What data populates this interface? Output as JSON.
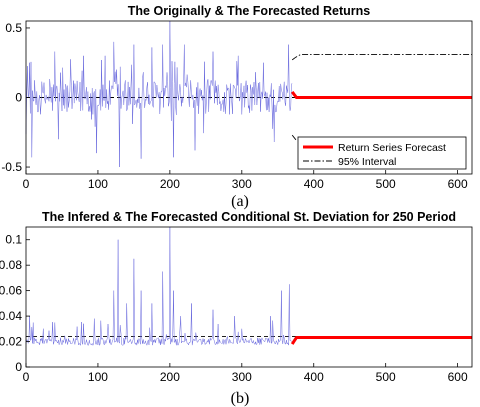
{
  "chart_data": [
    {
      "type": "line",
      "title": "The Originally & The Forecasted Returns",
      "caption": "(a)",
      "xlim": [
        0,
        620
      ],
      "ylim": [
        -0.55,
        0.55
      ],
      "x_ticks": [
        0,
        100,
        200,
        300,
        400,
        500,
        600
      ],
      "y_ticks": [
        -0.5,
        0,
        0.5
      ],
      "x_tick_labels": [
        "0",
        "100",
        "200",
        "300",
        "400",
        "500",
        "600"
      ],
      "y_tick_labels": [
        "-0.5",
        "0",
        "0.5"
      ],
      "reference_level": 0,
      "observed_length": 370,
      "observed_spikes": [
        {
          "x": 5,
          "y": 0.25
        },
        {
          "x": 8,
          "y": -0.43
        },
        {
          "x": 40,
          "y": 0.33
        },
        {
          "x": 45,
          "y": -0.3
        },
        {
          "x": 80,
          "y": 0.3
        },
        {
          "x": 98,
          "y": -0.4
        },
        {
          "x": 110,
          "y": 0.3
        },
        {
          "x": 122,
          "y": 0.4
        },
        {
          "x": 130,
          "y": -0.5
        },
        {
          "x": 150,
          "y": 0.38
        },
        {
          "x": 160,
          "y": -0.44
        },
        {
          "x": 175,
          "y": 0.36
        },
        {
          "x": 190,
          "y": 0.38
        },
        {
          "x": 200,
          "y": 0.55
        },
        {
          "x": 205,
          "y": -0.43
        },
        {
          "x": 220,
          "y": 0.38
        },
        {
          "x": 235,
          "y": -0.38
        },
        {
          "x": 260,
          "y": 0.33
        },
        {
          "x": 295,
          "y": 0.3
        },
        {
          "x": 330,
          "y": 0.25
        },
        {
          "x": 345,
          "y": -0.32
        },
        {
          "x": 365,
          "y": 0.38
        }
      ],
      "forecast": {
        "start": 370,
        "end": 620,
        "initial": 0.04,
        "level": 0
      },
      "interval": {
        "start": 370,
        "end": 620,
        "initial": 0.27,
        "level": 0.31
      },
      "colors": {
        "observed": "#6666dd",
        "forecast": "#ff0000",
        "interval": "#000000",
        "reference": "#000000"
      },
      "legend": {
        "position": "bottom-right",
        "entries": [
          {
            "label": "Return Series Forecast",
            "style": "solid-red"
          },
          {
            "label": "95% Interval",
            "style": "dashdot-black"
          }
        ]
      }
    },
    {
      "type": "line",
      "title": "The Infered & The Forecasted Conditional St. Deviation for 250 Period",
      "caption": "(b)",
      "xlim": [
        0,
        620
      ],
      "ylim": [
        0,
        0.11
      ],
      "x_ticks": [
        0,
        100,
        200,
        300,
        400,
        500,
        600
      ],
      "y_ticks": [
        0,
        0.02,
        0.04,
        0.06,
        0.08,
        0.1
      ],
      "x_tick_labels": [
        "0",
        "100",
        "200",
        "300",
        "400",
        "500",
        "600"
      ],
      "y_tick_labels": [
        "0",
        "0.02",
        "0.04",
        "0.06",
        "0.08",
        "0.1"
      ],
      "reference_level": 0.024,
      "baseline": 0.017,
      "observed_length": 370,
      "observed_spikes": [
        {
          "x": 5,
          "y": 0.04
        },
        {
          "x": 10,
          "y": 0.035
        },
        {
          "x": 40,
          "y": 0.035
        },
        {
          "x": 80,
          "y": 0.034
        },
        {
          "x": 95,
          "y": 0.038
        },
        {
          "x": 122,
          "y": 0.06
        },
        {
          "x": 128,
          "y": 0.1
        },
        {
          "x": 140,
          "y": 0.05
        },
        {
          "x": 150,
          "y": 0.085
        },
        {
          "x": 160,
          "y": 0.06
        },
        {
          "x": 175,
          "y": 0.05
        },
        {
          "x": 190,
          "y": 0.075
        },
        {
          "x": 200,
          "y": 0.11
        },
        {
          "x": 205,
          "y": 0.06
        },
        {
          "x": 215,
          "y": 0.04
        },
        {
          "x": 230,
          "y": 0.05
        },
        {
          "x": 260,
          "y": 0.045
        },
        {
          "x": 290,
          "y": 0.04
        },
        {
          "x": 300,
          "y": 0.03
        },
        {
          "x": 340,
          "y": 0.04
        },
        {
          "x": 355,
          "y": 0.06
        },
        {
          "x": 366,
          "y": 0.065
        }
      ],
      "forecast": {
        "start": 370,
        "end": 620,
        "initial": 0.018,
        "level": 0.0232
      },
      "colors": {
        "observed": "#6666dd",
        "forecast": "#ff0000",
        "reference": "#000000"
      }
    }
  ]
}
